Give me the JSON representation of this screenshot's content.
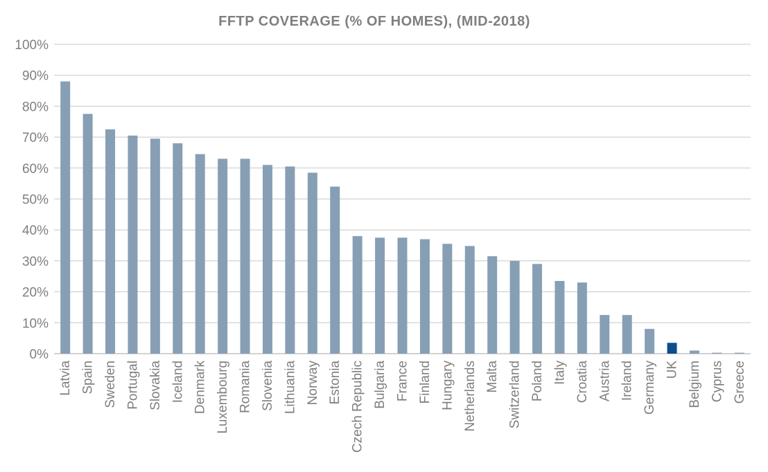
{
  "chart_data": {
    "type": "bar",
    "title": "FFTP COVERAGE (% OF HOMES), (MID-2018)",
    "xlabel": "",
    "ylabel": "",
    "ylim": [
      0,
      100
    ],
    "yticks": [
      "0%",
      "10%",
      "20%",
      "30%",
      "40%",
      "50%",
      "60%",
      "70%",
      "80%",
      "90%",
      "100%"
    ],
    "grid": true,
    "categories": [
      "Latvia",
      "Spain",
      "Sweden",
      "Portugal",
      "Slovakia",
      "Iceland",
      "Denmark",
      "Luxembourg",
      "Romania",
      "Slovenia",
      "Lithuania",
      "Norway",
      "Estonia",
      "Czech Republic",
      "Bulgaria",
      "France",
      "Finland",
      "Hungary",
      "Netherlands",
      "Malta",
      "Switzerland",
      "Poland",
      "Italy",
      "Croatia",
      "Austria",
      "Ireland",
      "Germany",
      "UK",
      "Belgium",
      "Cyprus",
      "Greece"
    ],
    "values": [
      88,
      77.5,
      72.5,
      70.5,
      69.5,
      68,
      64.5,
      63,
      63,
      61,
      60.5,
      58.5,
      54,
      38,
      37.5,
      37.5,
      37,
      35.5,
      34.8,
      31.5,
      30,
      29,
      23.5,
      23,
      12.5,
      12.5,
      8,
      3.5,
      1,
      0.3,
      0.3
    ],
    "colors": {
      "default": "#879fb5",
      "highlight": "#0a4e8c",
      "highlight_category": "UK"
    }
  }
}
